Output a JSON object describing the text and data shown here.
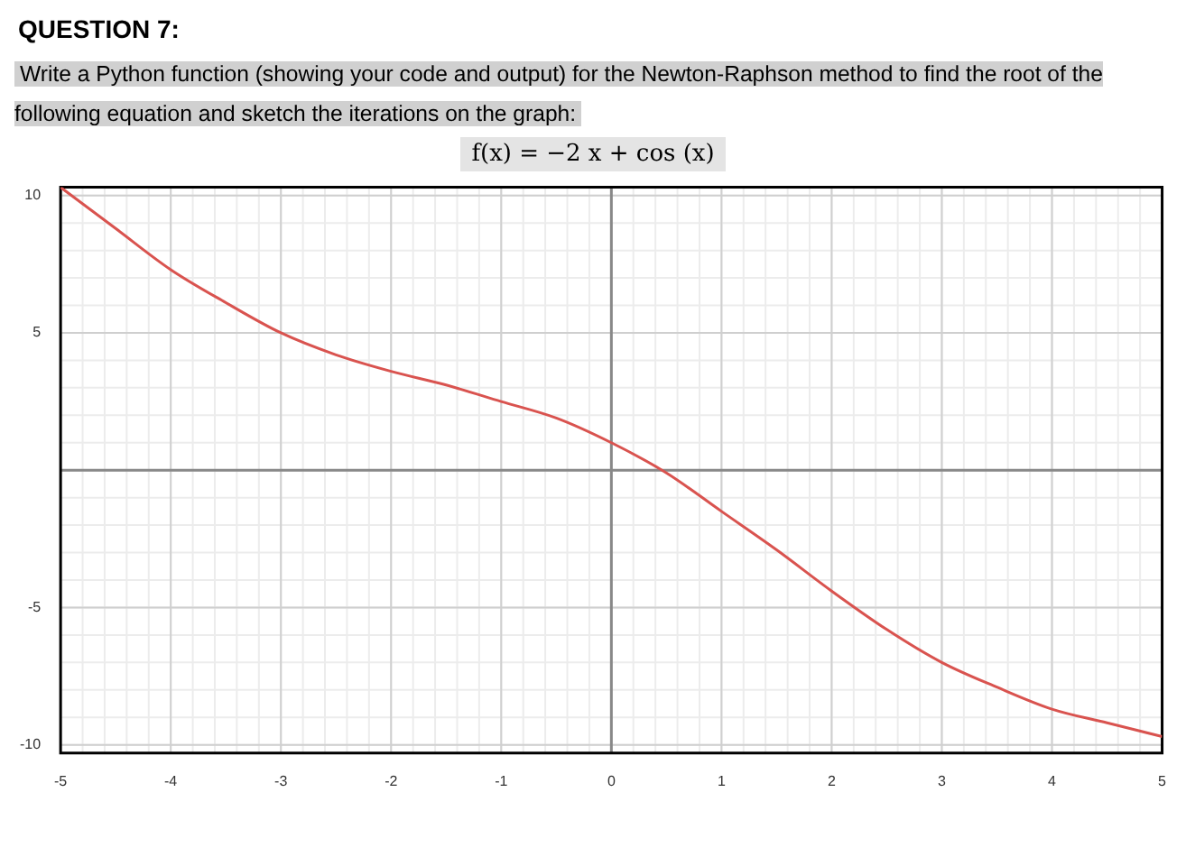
{
  "chart_data": {
    "type": "line",
    "title": "QUESTION 7:",
    "subtitle": "Write a Python function (showing your code and output) for the Newton-Raphson method to find the root of the following equation and sketch the iterations on the graph:",
    "annotations": [
      "f(x) = −2 x + cos (x)"
    ],
    "x": [
      -5,
      -4.5,
      -4,
      -3.5,
      -3,
      -2.5,
      -2,
      -1.5,
      -1,
      -0.5,
      0,
      0.5,
      1,
      1.5,
      2,
      2.5,
      3,
      3.5,
      4,
      4.5,
      5
    ],
    "series": [
      {
        "color": "#d9534f",
        "values": [
          10.3,
          8.8,
          7.3,
          6.1,
          5.0,
          4.2,
          3.6,
          3.1,
          2.5,
          1.9,
          1.0,
          -0.1,
          -1.5,
          -2.9,
          -4.4,
          -5.8,
          -7.0,
          -7.9,
          -8.7,
          -9.2,
          -9.7
        ]
      }
    ],
    "xlim": [
      -5,
      5
    ],
    "xticks": [
      -5,
      -4,
      -3,
      -2,
      -1,
      0,
      1,
      2,
      3,
      4,
      5
    ],
    "ylim": [
      -10.3,
      10.3
    ],
    "yticks": [
      -10,
      -5,
      {
        "value": 0,
        "label": null
      },
      5,
      10
    ],
    "grid": true,
    "legend": false,
    "marker": "none",
    "line_style": "solid"
  }
}
